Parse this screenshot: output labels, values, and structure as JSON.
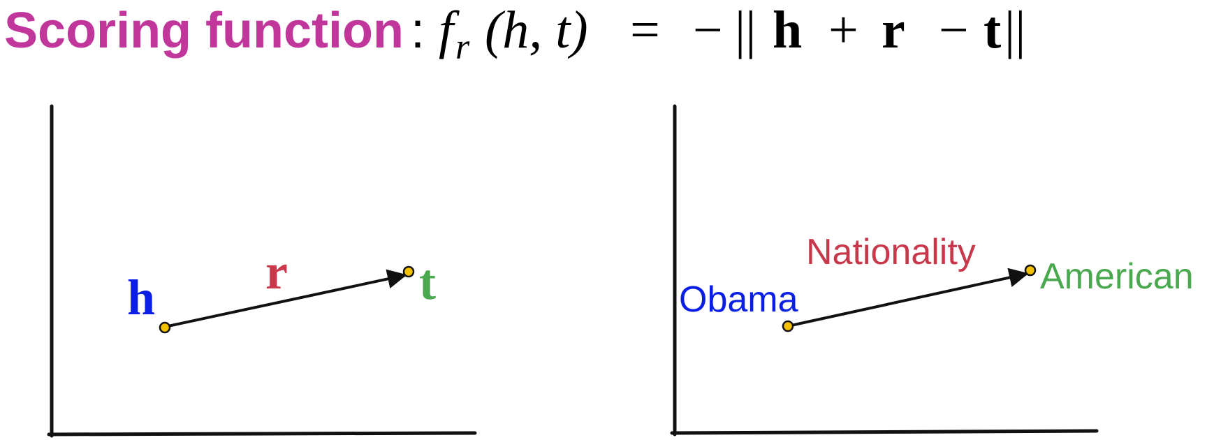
{
  "title": {
    "prefix": "Scoring function",
    "colon": ":",
    "f": "f",
    "f_sub": "r",
    "args": "(h, t)",
    "equals": "=",
    "minus": "−",
    "norm_open": "||",
    "h": "h",
    "plus": "+",
    "r": "r",
    "minus2": "−",
    "t": "t",
    "norm_close": "||"
  },
  "left_panel": {
    "head_label": "h",
    "relation_label": "r",
    "tail_label": "t"
  },
  "right_panel": {
    "head_label": "Obama",
    "relation_label": "Nationality",
    "tail_label": "American"
  },
  "colors": {
    "title": "#c0369a",
    "head": "#0a1ee6",
    "relation": "#c8374a",
    "tail": "#4aa84f",
    "axis": "#111111",
    "point_fill": "#f2c200"
  }
}
